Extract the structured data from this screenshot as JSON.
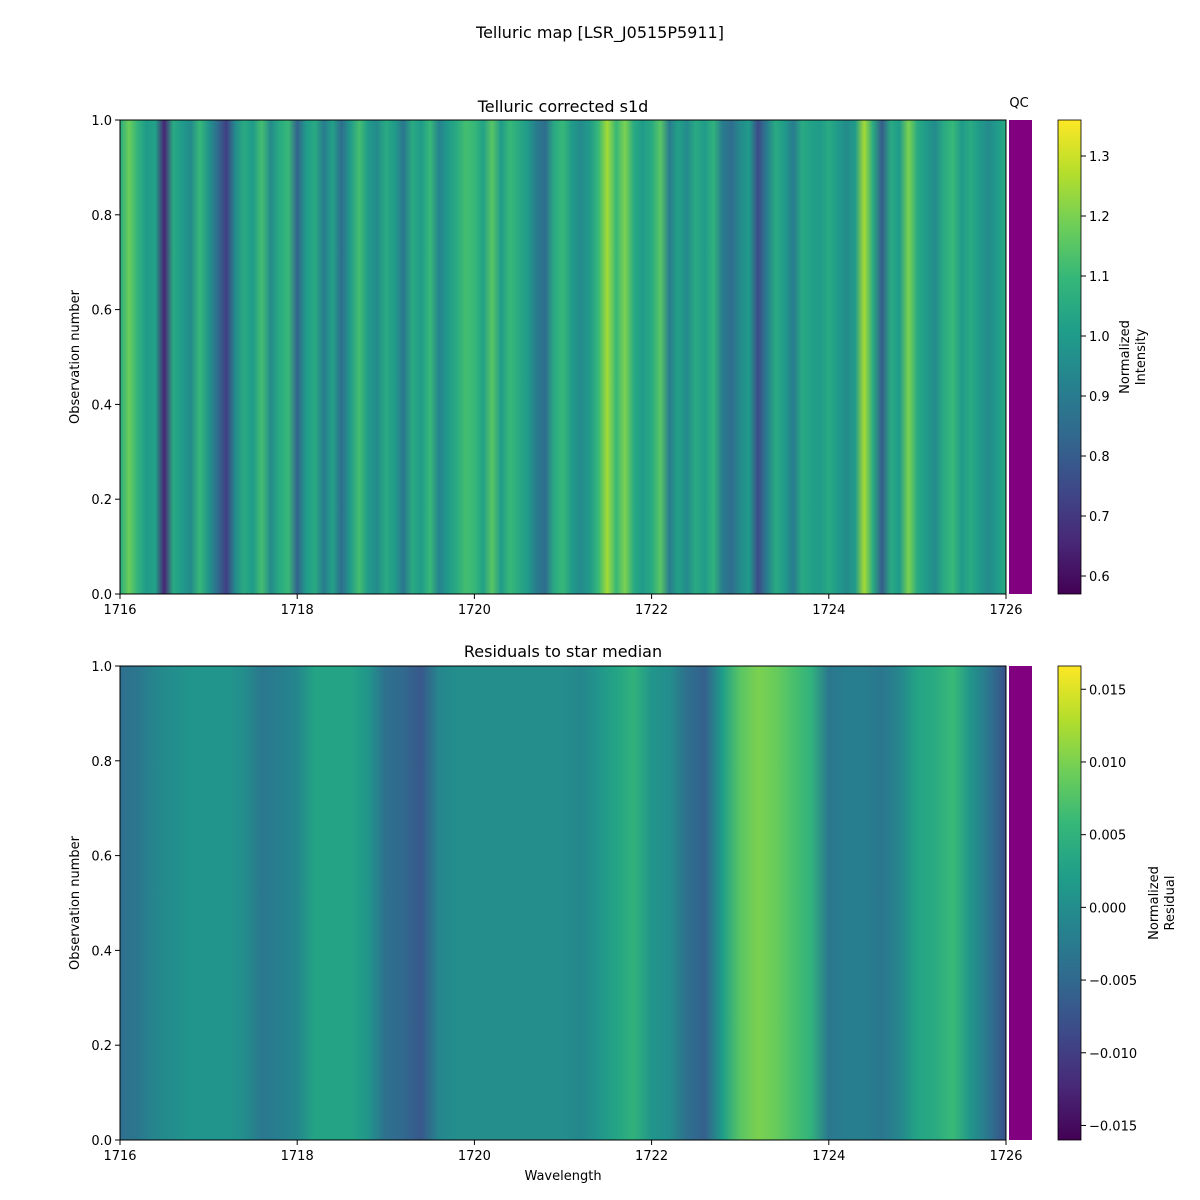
{
  "figure_title": "Telluric map [LSR_J0515P5911]",
  "qc_label": "QC",
  "qc_color": "#800080",
  "colormap": "viridis",
  "chart_data": [
    {
      "type": "heatmap",
      "title": "Telluric corrected s1d",
      "xlabel": "",
      "ylabel": "Observation number",
      "xlim": [
        1716,
        1726
      ],
      "ylim": [
        0,
        1
      ],
      "xticks": [
        1716,
        1718,
        1720,
        1722,
        1724,
        1726
      ],
      "yticks": [
        0.0,
        0.2,
        0.4,
        0.6,
        0.8,
        1.0
      ],
      "colorbar": {
        "label_lines": [
          "Normalized",
          "Intensity"
        ],
        "range": [
          0.57,
          1.36
        ],
        "ticks": [
          0.6,
          0.7,
          0.8,
          0.9,
          1.0,
          1.1,
          1.2,
          1.3
        ]
      },
      "profile": {
        "wavelength": [
          1716.0,
          1716.1,
          1716.2,
          1716.3,
          1716.4,
          1716.5,
          1716.6,
          1716.7,
          1716.8,
          1716.9,
          1717.0,
          1717.1,
          1717.2,
          1717.3,
          1717.4,
          1717.5,
          1717.6,
          1717.7,
          1717.8,
          1717.9,
          1718.0,
          1718.1,
          1718.2,
          1718.3,
          1718.4,
          1718.5,
          1718.6,
          1718.7,
          1718.8,
          1718.9,
          1719.0,
          1719.1,
          1719.2,
          1719.3,
          1719.4,
          1719.5,
          1719.6,
          1719.7,
          1719.8,
          1719.9,
          1720.0,
          1720.1,
          1720.2,
          1720.3,
          1720.4,
          1720.5,
          1720.6,
          1720.7,
          1720.8,
          1720.9,
          1721.0,
          1721.1,
          1721.2,
          1721.3,
          1721.4,
          1721.5,
          1721.6,
          1721.7,
          1721.8,
          1721.9,
          1722.0,
          1722.1,
          1722.2,
          1722.3,
          1722.4,
          1722.5,
          1722.6,
          1722.7,
          1722.8,
          1722.9,
          1723.0,
          1723.1,
          1723.2,
          1723.3,
          1723.4,
          1723.5,
          1723.6,
          1723.7,
          1723.8,
          1723.9,
          1724.0,
          1724.1,
          1724.2,
          1724.3,
          1724.4,
          1724.5,
          1724.6,
          1724.7,
          1724.8,
          1724.9,
          1725.0,
          1725.1,
          1725.2,
          1725.3,
          1725.4,
          1725.5,
          1725.6,
          1725.7,
          1725.8,
          1725.9,
          1726.0
        ],
        "value": [
          1.05,
          1.18,
          1.08,
          1.0,
          1.02,
          0.65,
          1.05,
          1.0,
          0.95,
          1.1,
          0.98,
          0.85,
          0.72,
          0.95,
          1.05,
          1.0,
          1.12,
          0.95,
          1.05,
          1.1,
          0.82,
          1.0,
          1.05,
          0.9,
          1.02,
          0.85,
          1.0,
          1.12,
          1.0,
          0.95,
          1.05,
          1.0,
          0.88,
          1.05,
          1.0,
          1.1,
          0.92,
          1.0,
          1.05,
          1.12,
          1.1,
          1.02,
          1.15,
          1.0,
          1.1,
          1.05,
          1.0,
          0.9,
          0.85,
          1.05,
          1.1,
          1.0,
          0.95,
          1.0,
          1.1,
          1.25,
          1.1,
          1.2,
          1.05,
          1.0,
          1.05,
          1.15,
          0.9,
          1.02,
          0.95,
          1.05,
          1.0,
          1.08,
          0.9,
          0.85,
          0.95,
          1.0,
          0.75,
          0.9,
          1.05,
          1.0,
          0.9,
          1.05,
          1.02,
          1.0,
          1.05,
          1.0,
          0.95,
          1.0,
          1.25,
          1.05,
          0.8,
          1.05,
          1.0,
          1.2,
          1.05,
          1.0,
          0.95,
          1.05,
          1.1,
          1.0,
          1.05,
          1.0,
          0.95,
          1.0,
          1.05
        ]
      }
    },
    {
      "type": "heatmap",
      "title": "Residuals to star median",
      "xlabel": "Wavelength",
      "ylabel": "Observation number",
      "xlim": [
        1716,
        1726
      ],
      "ylim": [
        0,
        1
      ],
      "xticks": [
        1716,
        1718,
        1720,
        1722,
        1724,
        1726
      ],
      "yticks": [
        0.0,
        0.2,
        0.4,
        0.6,
        0.8,
        1.0
      ],
      "colorbar": {
        "label_lines": [
          "Normalized",
          "Residual"
        ],
        "range": [
          -0.016,
          0.0166
        ],
        "ticks": [
          -0.015,
          -0.01,
          -0.005,
          0.0,
          0.005,
          0.01,
          0.015
        ]
      },
      "profile": {
        "wavelength": [
          1716.0,
          1716.2,
          1716.4,
          1716.6,
          1716.8,
          1717.0,
          1717.2,
          1717.4,
          1717.6,
          1717.8,
          1718.0,
          1718.2,
          1718.4,
          1718.6,
          1718.8,
          1719.0,
          1719.2,
          1719.4,
          1719.6,
          1719.8,
          1720.0,
          1720.2,
          1720.4,
          1720.6,
          1720.8,
          1721.0,
          1721.2,
          1721.4,
          1721.6,
          1721.8,
          1722.0,
          1722.2,
          1722.4,
          1722.6,
          1722.8,
          1723.0,
          1723.2,
          1723.4,
          1723.6,
          1723.8,
          1724.0,
          1724.2,
          1724.4,
          1724.6,
          1724.8,
          1725.0,
          1725.2,
          1725.4,
          1725.6,
          1725.8,
          1726.0
        ],
        "value": [
          -0.004,
          -0.003,
          -0.001,
          0.0,
          0.001,
          0.001,
          0.001,
          0.0,
          -0.003,
          -0.002,
          -0.001,
          0.003,
          0.003,
          0.003,
          0.001,
          -0.004,
          -0.005,
          -0.007,
          -0.001,
          0.0,
          0.0,
          0.0,
          0.0,
          0.0,
          0.0,
          0.0,
          -0.001,
          0.001,
          0.003,
          0.005,
          0.001,
          0.0,
          -0.004,
          -0.006,
          0.002,
          0.008,
          0.01,
          0.009,
          0.007,
          0.005,
          -0.003,
          -0.002,
          -0.002,
          -0.003,
          -0.001,
          0.003,
          0.004,
          0.006,
          0.001,
          -0.003,
          -0.008
        ]
      }
    }
  ]
}
